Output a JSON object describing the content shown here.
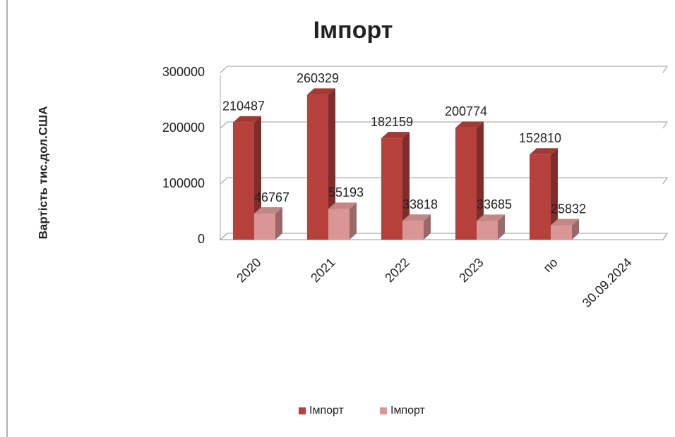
{
  "chart_data": {
    "type": "bar3d",
    "title": "Імпорт",
    "y_label": "Вартість тис.дол.США",
    "categories": [
      "2020",
      "2021",
      "2022",
      "2023",
      "по",
      "30.09.2024"
    ],
    "series": [
      {
        "name": "Імпорт",
        "color": "#b5403c",
        "values": [
          210487,
          260329,
          182159,
          200774,
          152810,
          null
        ]
      },
      {
        "name": "Імпорт",
        "color": "#d99694",
        "values": [
          46767,
          55193,
          33818,
          33685,
          25832,
          null
        ]
      }
    ],
    "ylim": [
      0,
      300000
    ],
    "yticks": [
      0,
      100000,
      200000,
      300000
    ],
    "grid": true,
    "legend": "bottom"
  }
}
